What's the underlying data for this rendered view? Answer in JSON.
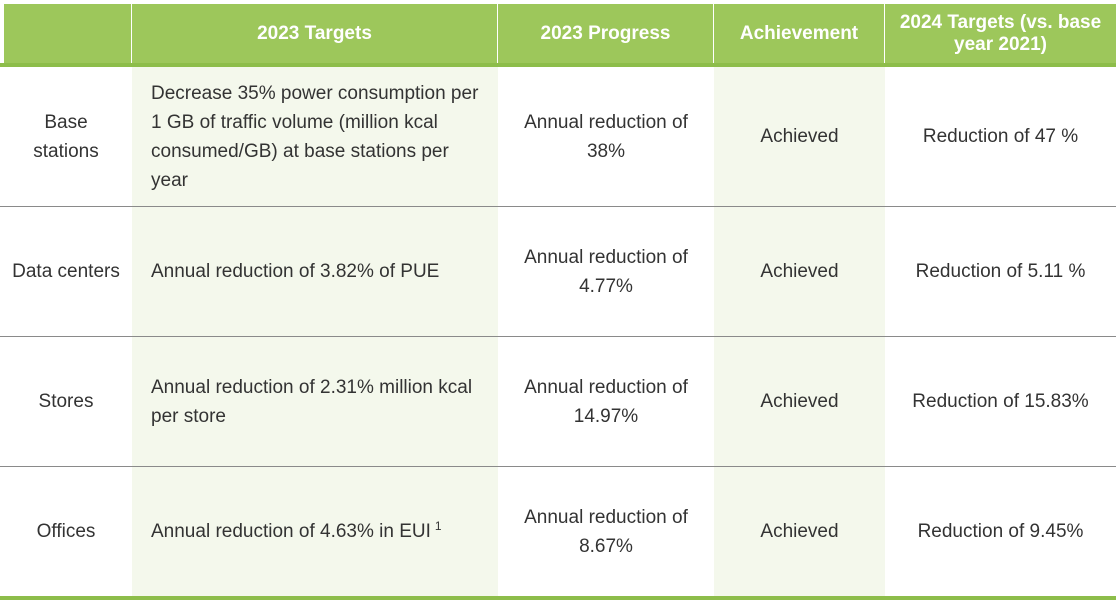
{
  "headers": {
    "col1": "",
    "col2": "2023 Targets",
    "col3": "2023 Progress",
    "col4": "Achievement",
    "col5": "2024 Targets (vs. base year 2021)"
  },
  "rows": [
    {
      "label": "Base stations",
      "target": "Decrease 35% power consumption per 1 GB of traffic volume (million kcal consumed/GB) at base stations per year",
      "progress": "Annual reduction of 38%",
      "achievement": "Achieved",
      "next_target": "Reduction of 47 %"
    },
    {
      "label": "Data centers",
      "target": "Annual reduction of 3.82% of PUE",
      "progress": "Annual reduction of 4.77%",
      "achievement": "Achieved",
      "next_target": "Reduction of 5.11 %"
    },
    {
      "label": "Stores",
      "target": "Annual reduction of 2.31% million kcal per store",
      "progress": "Annual reduction of 14.97%",
      "achievement": "Achieved",
      "next_target": "Reduction of 15.83%"
    },
    {
      "label": "Offices",
      "target": "Annual reduction of 4.63% in EUI",
      "target_footnote": "1",
      "progress": "Annual reduction of 8.67%",
      "achievement": "Achieved",
      "next_target": "Reduction of 9.45%"
    }
  ],
  "colors": {
    "header_bg": "#9dc75b",
    "rule": "#8dbd4a",
    "shaded_column": "#f4f8ec",
    "row_divider": "#8a8a8a"
  }
}
